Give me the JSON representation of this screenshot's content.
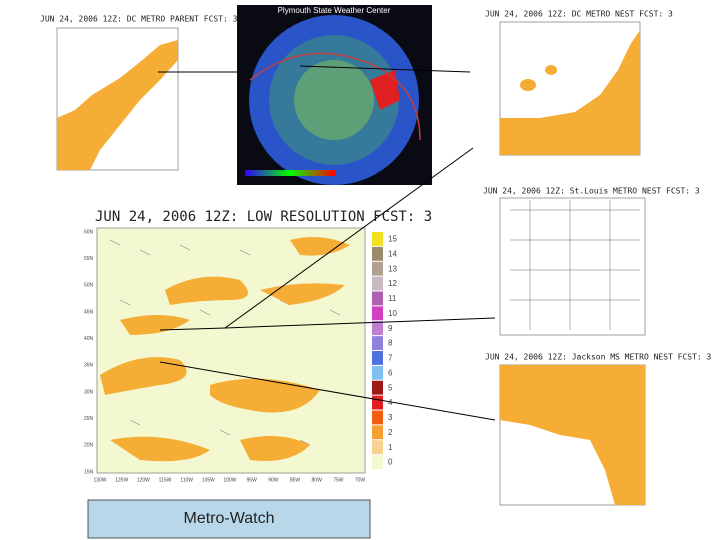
{
  "panels": {
    "parent": {
      "title": "JUN 24, 2006 12Z: DC METRO PARENT FCST: 3"
    },
    "radar": {
      "title": "Plymouth State Weather Center"
    },
    "dc_nest": {
      "title": "JUN 24, 2006 12Z: DC METRO NEST FCST: 3"
    },
    "low_res": {
      "title": "JUN 24, 2006 12Z: LOW RESOLUTION FCST: 3",
      "y_labels": [
        "60N",
        "55N",
        "50N",
        "45N",
        "40N",
        "35N",
        "30N",
        "25N",
        "20N",
        "15N"
      ],
      "x_labels": [
        "130W",
        "125W",
        "120W",
        "115W",
        "110W",
        "105W",
        "100W",
        "95W",
        "90W",
        "85W",
        "80W",
        "75W",
        "70W"
      ],
      "colorbar": [
        {
          "label": "15",
          "color": "#f0e020"
        },
        {
          "label": "14",
          "color": "#9a8a6a"
        },
        {
          "label": "13",
          "color": "#b0a090"
        },
        {
          "label": "12",
          "color": "#c8b8c0"
        },
        {
          "label": "11",
          "color": "#b060b0"
        },
        {
          "label": "10",
          "color": "#d040c0"
        },
        {
          "label": "9",
          "color": "#c080d0"
        },
        {
          "label": "8",
          "color": "#9080e0"
        },
        {
          "label": "7",
          "color": "#5070e0"
        },
        {
          "label": "6",
          "color": "#80c0f0"
        },
        {
          "label": "5",
          "color": "#a01818"
        },
        {
          "label": "4",
          "color": "#e02020"
        },
        {
          "label": "3",
          "color": "#f06010"
        },
        {
          "label": "2",
          "color": "#f5a030"
        },
        {
          "label": "1",
          "color": "#f8d090"
        },
        {
          "label": "0",
          "color": "#f4f8d0"
        }
      ]
    },
    "stl_nest": {
      "title": "JUN 24, 2006 12Z: St.Louis METRO NEST FCST: 3"
    },
    "jackson_nest": {
      "title": "JUN 24, 2006 12Z: Jackson MS METRO NEST FCST: 3"
    }
  },
  "caption": "Metro-Watch"
}
